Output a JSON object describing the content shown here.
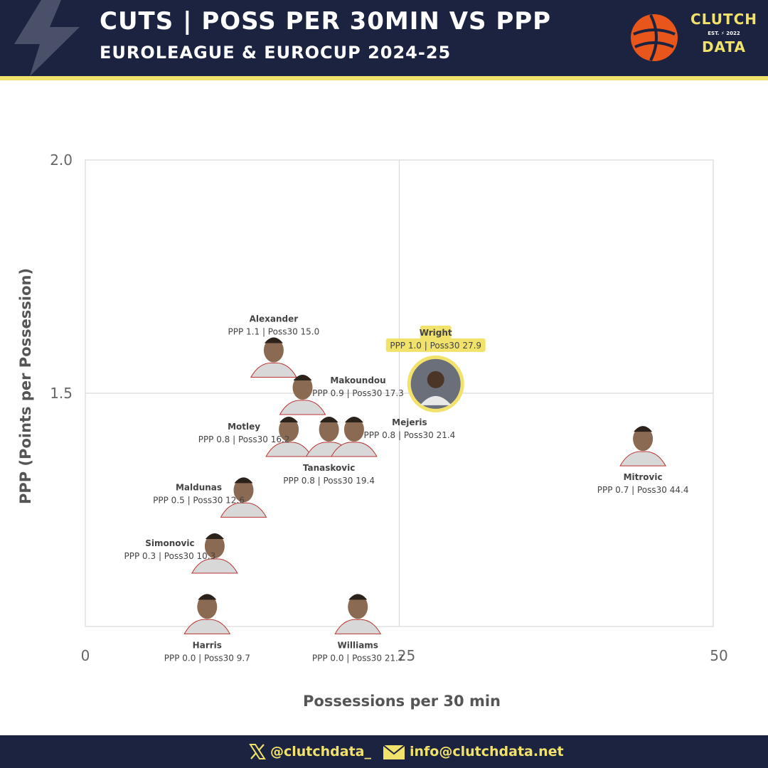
{
  "header": {
    "title": "CUTS | POSS PER 30MIN VS PPP",
    "subtitle": "EUROLEAGUE & EUROCUP 2024-25",
    "logo_line1": "CLUTCH",
    "logo_est": "EST.",
    "logo_year": "2022",
    "logo_line2": "DATA"
  },
  "footer": {
    "handle": "@clutchdata_",
    "email": "info@clutchdata.net",
    "x_icon": "x-logo-icon",
    "mail_icon": "envelope-icon"
  },
  "colors": {
    "navy": "#1b2340",
    "yellow": "#f1e26b",
    "highlight": "#f1e26b",
    "grid": "#d9d9d9",
    "euroleague_orange": "#e8561b"
  },
  "chart_data": {
    "type": "scatter",
    "xlabel": "Possessions per 30 min",
    "ylabel": "PPP (Points per Possession)",
    "xlim": [
      0,
      50
    ],
    "ylim": [
      1.0,
      2.0
    ],
    "x_ticks": [
      0,
      25,
      50
    ],
    "x_tick_labels": [
      "0",
      "25",
      "50"
    ],
    "y_ticks": [
      1.5,
      2.0
    ],
    "y_tick_labels": [
      "1.5",
      "2.0"
    ],
    "grid": true,
    "points": [
      {
        "name": "Alexander",
        "stat": "PPP 1.1 | Poss30 15.0",
        "x": 15.0,
        "y": 1.58,
        "highlight": false
      },
      {
        "name": "Wright",
        "stat": "PPP 1.0 | Poss30 27.9",
        "x": 27.9,
        "y": 1.52,
        "highlight": true
      },
      {
        "name": "Makoundou",
        "stat": "PPP 0.9 | Poss30 17.3",
        "x": 17.3,
        "y": 1.5,
        "highlight": false
      },
      {
        "name": "Motley",
        "stat": "PPP 0.8 | Poss30 16.2",
        "x": 16.2,
        "y": 1.41,
        "highlight": false
      },
      {
        "name": "Tanaskovic",
        "stat": "PPP 0.8 | Poss30 19.4",
        "x": 19.4,
        "y": 1.41,
        "highlight": false
      },
      {
        "name": "Mejeris",
        "stat": "PPP 0.8 | Poss30 21.4",
        "x": 21.4,
        "y": 1.41,
        "highlight": false
      },
      {
        "name": "Mitrovic",
        "stat": "PPP 0.7 | Poss30 44.4",
        "x": 44.4,
        "y": 1.39,
        "highlight": false
      },
      {
        "name": "Maldunas",
        "stat": "PPP 0.5 | Poss30 12.6",
        "x": 12.6,
        "y": 1.28,
        "highlight": false
      },
      {
        "name": "Simonovic",
        "stat": "PPP 0.3 | Poss30 10.3",
        "x": 10.3,
        "y": 1.16,
        "highlight": false
      },
      {
        "name": "Harris",
        "stat": "PPP 0.0 | Poss30 9.7",
        "x": 9.7,
        "y": 1.03,
        "highlight": false
      },
      {
        "name": "Williams",
        "stat": "PPP 0.0 | Poss30 21.7",
        "x": 21.7,
        "y": 1.03,
        "highlight": false
      }
    ]
  }
}
